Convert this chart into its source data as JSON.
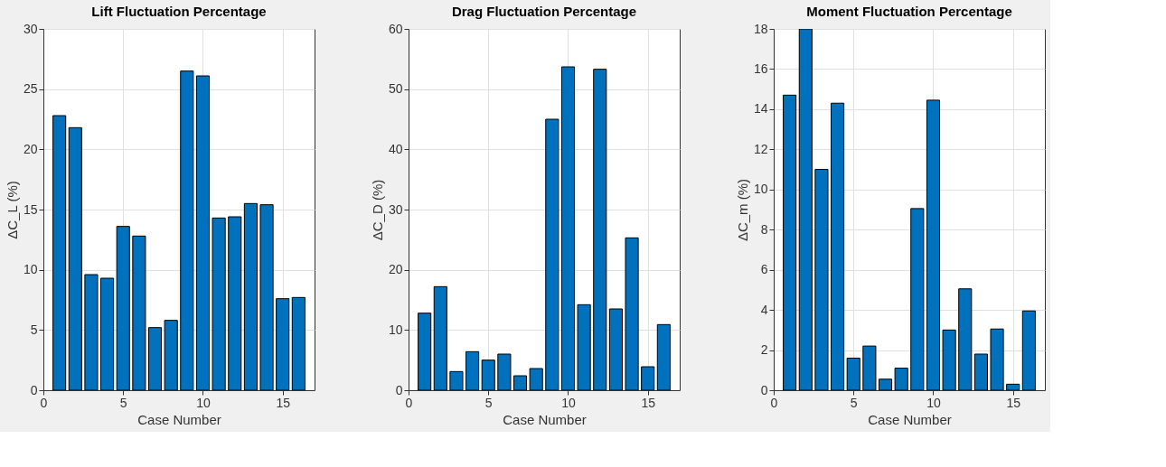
{
  "chart_data": [
    {
      "type": "bar",
      "title": "Lift Fluctuation Percentage",
      "xlabel": "Case Number",
      "ylabel": "ΔC_L (%)",
      "x": [
        1,
        2,
        3,
        4,
        5,
        6,
        7,
        8,
        9,
        10,
        11,
        12,
        13,
        14,
        15,
        16
      ],
      "values": [
        22.8,
        21.8,
        9.6,
        9.3,
        13.6,
        12.8,
        5.2,
        5.8,
        26.5,
        26.1,
        14.3,
        14.4,
        15.5,
        15.4,
        7.6,
        7.7
      ],
      "color": "#0072bd",
      "xlim": [
        0,
        17
      ],
      "xticks": [
        0,
        5,
        10,
        15
      ],
      "ylim": [
        0,
        30
      ],
      "yticks": [
        0,
        5,
        10,
        15,
        20,
        25,
        30
      ],
      "grid": true
    },
    {
      "type": "bar",
      "title": "Drag Fluctuation Percentage",
      "xlabel": "Case Number",
      "ylabel": "ΔC_D (%)",
      "x": [
        1,
        2,
        3,
        4,
        5,
        6,
        7,
        8,
        9,
        10,
        11,
        12,
        13,
        14,
        15,
        16
      ],
      "values": [
        12.8,
        17.2,
        3.1,
        6.4,
        5.0,
        6.0,
        2.4,
        3.6,
        45.0,
        53.7,
        14.2,
        53.3,
        13.5,
        25.3,
        3.9,
        10.9
      ],
      "color": "#0072bd",
      "xlim": [
        0,
        17
      ],
      "xticks": [
        0,
        5,
        10,
        15
      ],
      "ylim": [
        0,
        60
      ],
      "yticks": [
        0,
        10,
        20,
        30,
        40,
        50,
        60
      ],
      "grid": true
    },
    {
      "type": "bar",
      "title": "Moment Fluctuation Percentage",
      "xlabel": "Case Number",
      "ylabel": "ΔC_m (%)",
      "x": [
        1,
        2,
        3,
        4,
        5,
        6,
        7,
        8,
        9,
        10,
        11,
        12,
        13,
        14,
        15,
        16
      ],
      "values": [
        14.7,
        18,
        11.0,
        14.3,
        1.6,
        2.2,
        0.55,
        1.1,
        9.05,
        14.45,
        3.0,
        5.05,
        1.8,
        3.05,
        0.3,
        3.95
      ],
      "color": "#0072bd",
      "xlim": [
        0,
        17
      ],
      "xticks": [
        0,
        5,
        10,
        15
      ],
      "ylim": [
        0,
        18
      ],
      "yticks": [
        0,
        2,
        4,
        6,
        8,
        10,
        12,
        14,
        16,
        18
      ],
      "grid": true
    }
  ]
}
